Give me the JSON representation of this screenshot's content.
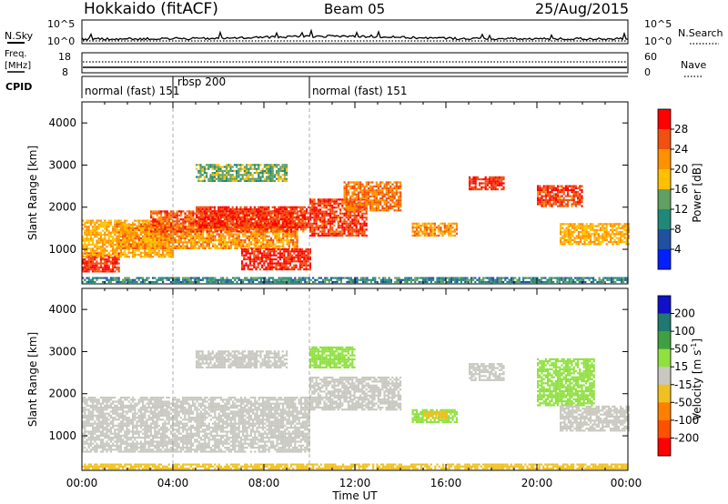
{
  "header": {
    "station": "Hokkaido (fitACF)",
    "beam": "Beam 05",
    "date": "25/Aug/2015"
  },
  "nsky_panel": {
    "left_label": "N.Sky",
    "left_ticks": [
      "10^5",
      "10^0"
    ],
    "right_ticks": [
      "10^5",
      "10^0"
    ],
    "right_label": "N.Search"
  },
  "freq_panel": {
    "left_label_1": "Freq.",
    "left_label_2": "[MHz]",
    "left_ticks": [
      "18",
      "8"
    ],
    "right_ticks": [
      "60",
      "0"
    ],
    "right_label": "Nave"
  },
  "cpid_panel": {
    "label": "CPID",
    "segments": [
      {
        "text": "normal (fast) 151",
        "start_hour": 0
      },
      {
        "text": "rbsp 200",
        "start_hour": 4
      },
      {
        "text": "normal (fast) 151",
        "start_hour": 10
      }
    ]
  },
  "power_panel": {
    "ylabel": "Slant Range [km]",
    "colorbar_label": "Power [dB]",
    "colorbar_ticks": [
      "28",
      "24",
      "20",
      "16",
      "12",
      "8",
      "4"
    ]
  },
  "velocity_panel": {
    "ylabel": "Slant Range [km]",
    "colorbar_label": "Velocity [m s",
    "colorbar_label_sup": "-1",
    "colorbar_label_end": "]",
    "colorbar_ticks": [
      "200",
      "100",
      "50",
      "15",
      "-15",
      "-50",
      "-100",
      "-200"
    ]
  },
  "xaxis": {
    "label": "Time UT",
    "ticks": [
      "00:00",
      "04:00",
      "08:00",
      "12:00",
      "16:00",
      "20:00",
      "00:00"
    ]
  },
  "colors": {
    "power_scale": [
      "#ff0000",
      "#f05010",
      "#ff9000",
      "#ffc000",
      "#60a060",
      "#208878",
      "#2050a0",
      "#0020ff"
    ],
    "velocity_scale": [
      "#1010c8",
      "#207870",
      "#40a040",
      "#90e040",
      "#c8c8c0",
      "#f0c020",
      "#ff8000",
      "#ff5000",
      "#ff0000"
    ],
    "ground_scatter": "#c8c8c0"
  },
  "chart_data": [
    {
      "type": "heatmap",
      "title": "Power",
      "x_range_hours": [
        0,
        24
      ],
      "y_range_km": [
        180,
        4500
      ],
      "yticks": [
        1000,
        2000,
        3000,
        4000
      ],
      "color_range_db": [
        0,
        32
      ],
      "regions": [
        {
          "t0": 0.0,
          "t1": 1.6,
          "r0": 450,
          "r1": 900,
          "db": 28
        },
        {
          "t0": 0.0,
          "t1": 4.0,
          "r0": 800,
          "r1": 1700,
          "db": 20
        },
        {
          "t0": 1.5,
          "t1": 9.5,
          "r0": 1000,
          "r1": 1600,
          "db": 22
        },
        {
          "t0": 3.0,
          "t1": 9.8,
          "r0": 1400,
          "r1": 1900,
          "db": 26
        },
        {
          "t0": 5.0,
          "t1": 10.0,
          "r0": 1500,
          "r1": 2000,
          "db": 28
        },
        {
          "t0": 7.0,
          "t1": 10.0,
          "r0": 500,
          "r1": 1000,
          "db": 29
        },
        {
          "t0": 10.0,
          "t1": 12.5,
          "r0": 1300,
          "r1": 2200,
          "db": 27
        },
        {
          "t0": 11.5,
          "t1": 14.0,
          "r0": 1900,
          "r1": 2600,
          "db": 24
        },
        {
          "t0": 5.0,
          "t1": 9.0,
          "r0": 2600,
          "r1": 3000,
          "db": 14
        },
        {
          "t0": 14.5,
          "t1": 16.5,
          "r0": 1300,
          "r1": 1600,
          "db": 22
        },
        {
          "t0": 17.0,
          "t1": 18.5,
          "r0": 2400,
          "r1": 2700,
          "db": 28
        },
        {
          "t0": 20.0,
          "t1": 22.0,
          "r0": 2000,
          "r1": 2500,
          "db": 27
        },
        {
          "t0": 21.0,
          "t1": 24.0,
          "r0": 1100,
          "r1": 1600,
          "db": 20
        },
        {
          "t0": 0.0,
          "t1": 24.0,
          "r0": 200,
          "r1": 320,
          "db": 10
        }
      ]
    },
    {
      "type": "heatmap",
      "title": "Velocity",
      "x_range_hours": [
        0,
        24
      ],
      "y_range_km": [
        180,
        4500
      ],
      "yticks": [
        1000,
        2000,
        3000,
        4000
      ],
      "color_range_ms": [
        -200,
        200
      ],
      "regions": [
        {
          "t0": 0.0,
          "t1": 10.0,
          "r0": 600,
          "r1": 1900,
          "v": 0,
          "ground": true
        },
        {
          "t0": 10.0,
          "t1": 14.0,
          "r0": 1600,
          "r1": 2400,
          "v": 0,
          "ground": true
        },
        {
          "t0": 5.0,
          "t1": 9.0,
          "r0": 2600,
          "r1": 3000,
          "v": 0,
          "ground": true
        },
        {
          "t0": 10.0,
          "t1": 12.0,
          "r0": 2600,
          "r1": 3100,
          "v": 30
        },
        {
          "t0": 14.5,
          "t1": 16.5,
          "r0": 1300,
          "r1": 1600,
          "v": 40
        },
        {
          "t0": 15.0,
          "t1": 16.0,
          "r0": 1400,
          "r1": 1550,
          "v": -30
        },
        {
          "t0": 17.0,
          "t1": 18.5,
          "r0": 2300,
          "r1": 2700,
          "v": 0,
          "ground": true
        },
        {
          "t0": 20.0,
          "t1": 22.5,
          "r0": 1700,
          "r1": 2800,
          "v": 40
        },
        {
          "t0": 21.0,
          "t1": 24.0,
          "r0": 1100,
          "r1": 1700,
          "v": 0,
          "ground": true
        },
        {
          "t0": 0.0,
          "t1": 24.0,
          "r0": 200,
          "r1": 320,
          "v": -30
        }
      ]
    }
  ]
}
